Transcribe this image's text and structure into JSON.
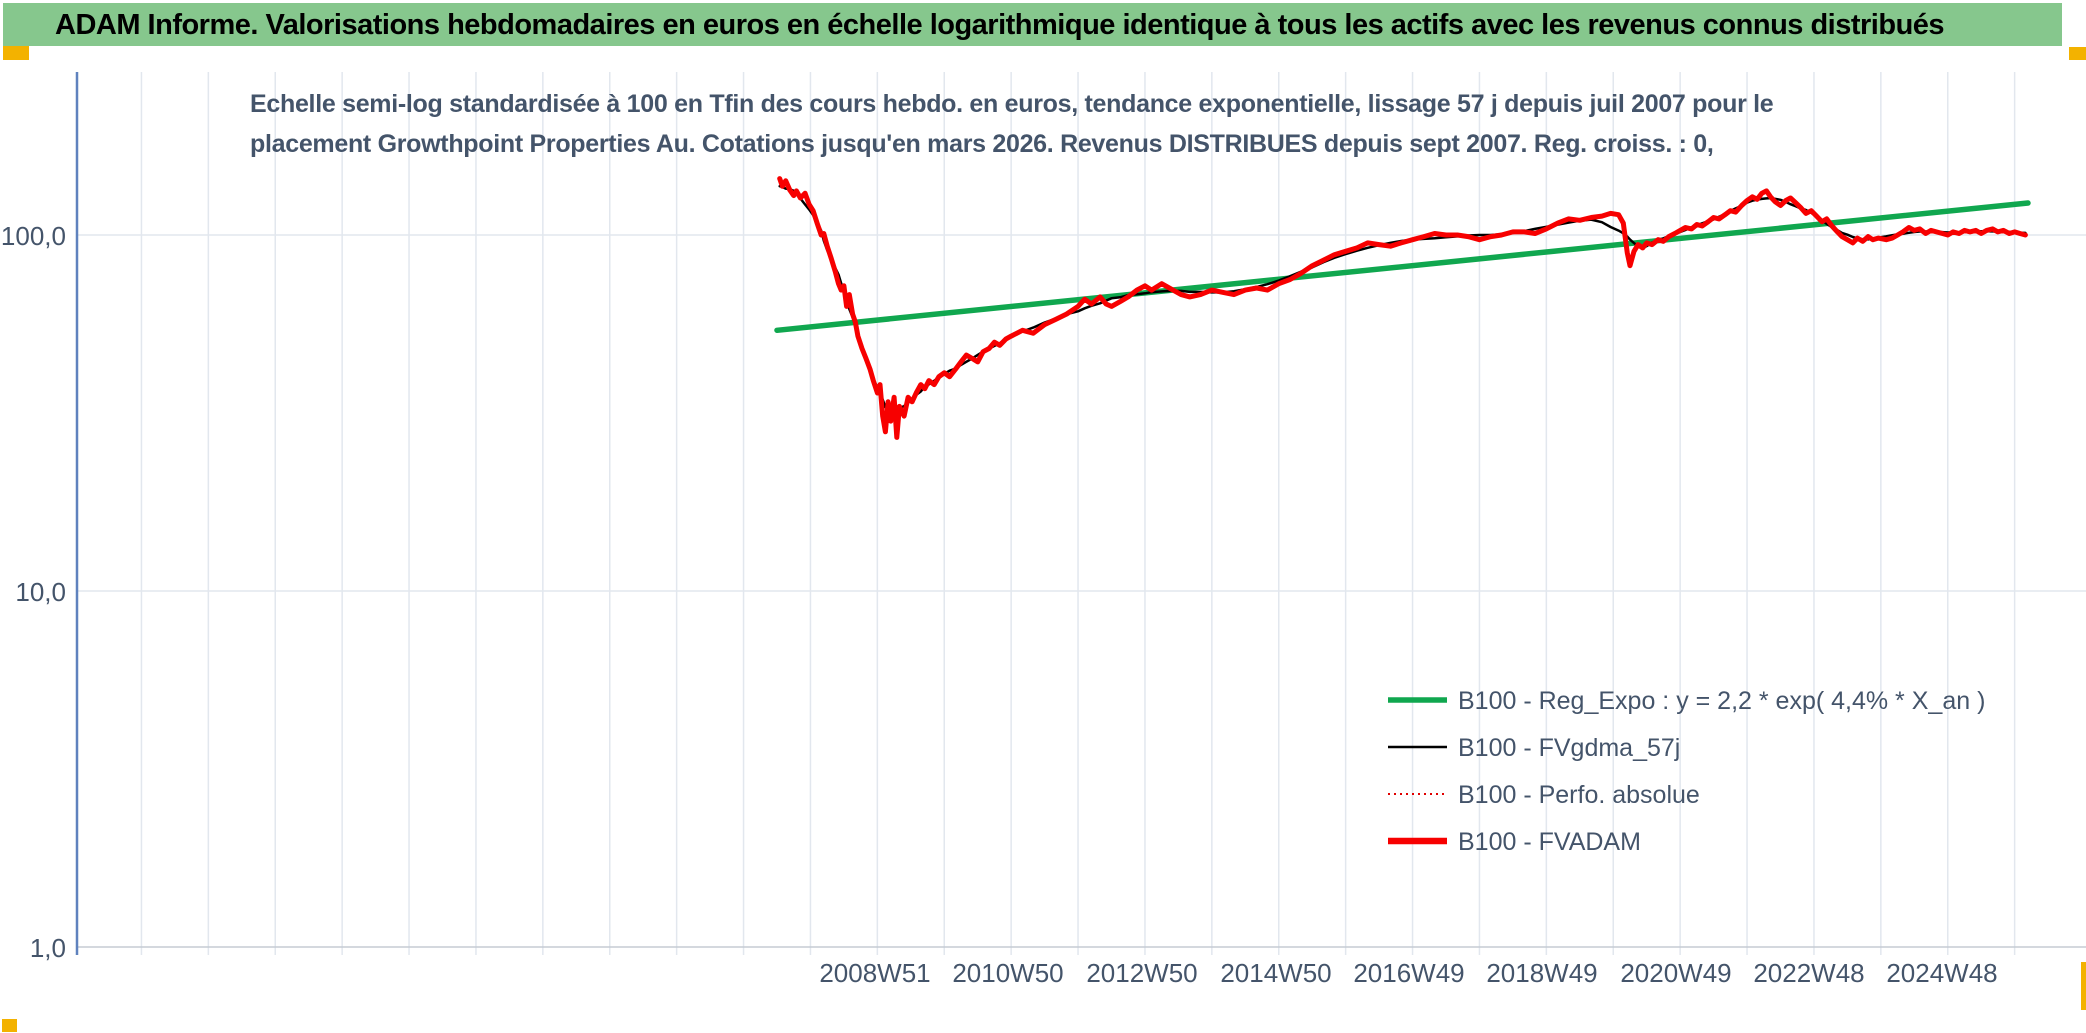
{
  "window": {
    "title_bar_text": "ADAM Informe. Valorisations hebdomadaires en euros en échelle logarithmique identique à tous les actifs avec les revenus connus distribués",
    "accent_green": "#86C78D",
    "accent_amber": "#F3B200"
  },
  "chart_data": {
    "type": "line",
    "title_line1": "Echelle semi-log standardisée à 100 en Tfin des cours hebdo. en euros, tendance exponentielle, lissage 57 j depuis juil 2007 pour le",
    "title_line2": "placement Growthpoint Properties Au. Cotations jusqu'en mars 2026. Revenus DISTRIBUES depuis sept 2007. Reg. croiss. : 0,",
    "y_axis": {
      "scale": "log",
      "ticks": [
        {
          "label": "100,0",
          "value": 100
        },
        {
          "label": "10,0",
          "value": 10
        },
        {
          "label": "1,0",
          "value": 1
        }
      ],
      "gridlines_at": [
        100,
        10,
        1
      ]
    },
    "x_axis": {
      "range_years": [
        1997.0,
        2026.95
      ],
      "gridline_interval_years": 1,
      "labels": [
        {
          "label": "2008W51",
          "t": 2008.97
        },
        {
          "label": "2010W50",
          "t": 2010.95
        },
        {
          "label": "2012W50",
          "t": 2012.96
        },
        {
          "label": "2014W50",
          "t": 2014.96
        },
        {
          "label": "2016W49",
          "t": 2016.94
        },
        {
          "label": "2018W49",
          "t": 2018.94
        },
        {
          "label": "2020W49",
          "t": 2020.94
        },
        {
          "label": "2022W48",
          "t": 2022.92
        },
        {
          "label": "2024W48",
          "t": 2024.92
        }
      ]
    },
    "legend": [
      {
        "label": "B100 - Reg_Expo : y = 2,2 * exp( 4,4% *  X_an )",
        "color": "#10A74F",
        "style": "solid-thick"
      },
      {
        "label": "B100 - FVgdma_57j",
        "color": "#000000",
        "style": "solid-thin"
      },
      {
        "label": "B100 - Perfo. absolue",
        "color": "#E00000",
        "style": "dotted"
      },
      {
        "label": "B100 - FVADAM",
        "color": "#F70000",
        "style": "solid-thicker"
      }
    ],
    "series": [
      {
        "key": "reg-expo",
        "name": "B100 - Reg_Expo",
        "color": "#10A74F",
        "width": 5.5,
        "points": [
          [
            2007.5,
            54
          ],
          [
            2026.2,
            123
          ]
        ]
      },
      {
        "key": "perfo-absolue",
        "name": "B100 - Perfo. absolue",
        "color": "#E00000",
        "width": 2,
        "dotted": true,
        "same_as": "fvadam"
      },
      {
        "key": "fvgdma-57j",
        "name": "B100 - FVgdma_57j",
        "color": "#000000",
        "width": 2.5,
        "smooth_of": "fvadam",
        "smooth_window": 9
      },
      {
        "key": "fvadam",
        "name": "B100 - FVADAM",
        "color": "#F70000",
        "width": 5,
        "points": [
          [
            2007.54,
            144
          ],
          [
            2007.58,
            137
          ],
          [
            2007.63,
            142
          ],
          [
            2007.69,
            134
          ],
          [
            2007.75,
            129
          ],
          [
            2007.79,
            133
          ],
          [
            2007.85,
            127
          ],
          [
            2007.92,
            131
          ],
          [
            2007.98,
            122
          ],
          [
            2008.04,
            117
          ],
          [
            2008.1,
            108
          ],
          [
            2008.16,
            100
          ],
          [
            2008.2,
            101
          ],
          [
            2008.25,
            93
          ],
          [
            2008.31,
            86
          ],
          [
            2008.37,
            79
          ],
          [
            2008.42,
            73
          ],
          [
            2008.46,
            70
          ],
          [
            2008.5,
            72
          ],
          [
            2008.54,
            63
          ],
          [
            2008.58,
            68
          ],
          [
            2008.63,
            60
          ],
          [
            2008.67,
            57
          ],
          [
            2008.71,
            52
          ],
          [
            2008.77,
            48
          ],
          [
            2008.83,
            45
          ],
          [
            2008.89,
            42
          ],
          [
            2008.94,
            39
          ],
          [
            2009.0,
            36
          ],
          [
            2009.04,
            38
          ],
          [
            2009.08,
            31
          ],
          [
            2009.12,
            28
          ],
          [
            2009.16,
            34
          ],
          [
            2009.2,
            30
          ],
          [
            2009.25,
            35
          ],
          [
            2009.29,
            27
          ],
          [
            2009.33,
            33
          ],
          [
            2009.4,
            31
          ],
          [
            2009.46,
            35
          ],
          [
            2009.52,
            34
          ],
          [
            2009.58,
            36
          ],
          [
            2009.65,
            38
          ],
          [
            2009.71,
            37
          ],
          [
            2009.77,
            39
          ],
          [
            2009.85,
            38
          ],
          [
            2009.92,
            40
          ],
          [
            2010.0,
            41
          ],
          [
            2010.08,
            40
          ],
          [
            2010.17,
            42
          ],
          [
            2010.25,
            44
          ],
          [
            2010.33,
            46
          ],
          [
            2010.42,
            45
          ],
          [
            2010.5,
            44
          ],
          [
            2010.58,
            47
          ],
          [
            2010.67,
            48
          ],
          [
            2010.75,
            50
          ],
          [
            2010.83,
            49
          ],
          [
            2010.92,
            51
          ],
          [
            2011.0,
            52
          ],
          [
            2011.17,
            54
          ],
          [
            2011.33,
            53
          ],
          [
            2011.5,
            56
          ],
          [
            2011.67,
            58
          ],
          [
            2011.83,
            60
          ],
          [
            2012.0,
            63
          ],
          [
            2012.1,
            66
          ],
          [
            2012.2,
            64
          ],
          [
            2012.33,
            67
          ],
          [
            2012.42,
            64
          ],
          [
            2012.5,
            63
          ],
          [
            2012.63,
            65
          ],
          [
            2012.75,
            67
          ],
          [
            2012.88,
            70
          ],
          [
            2013.0,
            72
          ],
          [
            2013.1,
            70
          ],
          [
            2013.25,
            73
          ],
          [
            2013.42,
            70
          ],
          [
            2013.54,
            68
          ],
          [
            2013.67,
            67
          ],
          [
            2013.83,
            68
          ],
          [
            2014.0,
            70
          ],
          [
            2014.17,
            69
          ],
          [
            2014.33,
            68
          ],
          [
            2014.5,
            70
          ],
          [
            2014.67,
            71
          ],
          [
            2014.83,
            70
          ],
          [
            2015.0,
            73
          ],
          [
            2015.17,
            75
          ],
          [
            2015.33,
            78
          ],
          [
            2015.5,
            82
          ],
          [
            2015.67,
            85
          ],
          [
            2015.83,
            88
          ],
          [
            2016.0,
            90
          ],
          [
            2016.17,
            92
          ],
          [
            2016.33,
            95
          ],
          [
            2016.5,
            94
          ],
          [
            2016.67,
            93
          ],
          [
            2016.83,
            95
          ],
          [
            2017.0,
            97
          ],
          [
            2017.17,
            99
          ],
          [
            2017.33,
            101
          ],
          [
            2017.5,
            100
          ],
          [
            2017.67,
            100
          ],
          [
            2017.83,
            99
          ],
          [
            2018.0,
            97
          ],
          [
            2018.17,
            99
          ],
          [
            2018.33,
            100
          ],
          [
            2018.5,
            102
          ],
          [
            2018.67,
            102
          ],
          [
            2018.83,
            101
          ],
          [
            2019.0,
            104
          ],
          [
            2019.17,
            108
          ],
          [
            2019.33,
            111
          ],
          [
            2019.5,
            110
          ],
          [
            2019.67,
            112
          ],
          [
            2019.83,
            113
          ],
          [
            2019.96,
            115
          ],
          [
            2020.08,
            114
          ],
          [
            2020.15,
            108
          ],
          [
            2020.21,
            89
          ],
          [
            2020.25,
            82
          ],
          [
            2020.31,
            90
          ],
          [
            2020.37,
            94
          ],
          [
            2020.44,
            92
          ],
          [
            2020.5,
            95
          ],
          [
            2020.58,
            94
          ],
          [
            2020.67,
            97
          ],
          [
            2020.75,
            96
          ],
          [
            2020.83,
            99
          ],
          [
            2020.92,
            101
          ],
          [
            2021.0,
            103
          ],
          [
            2021.08,
            105
          ],
          [
            2021.17,
            104
          ],
          [
            2021.25,
            107
          ],
          [
            2021.33,
            106
          ],
          [
            2021.42,
            109
          ],
          [
            2021.5,
            112
          ],
          [
            2021.58,
            111
          ],
          [
            2021.67,
            114
          ],
          [
            2021.75,
            117
          ],
          [
            2021.83,
            116
          ],
          [
            2021.92,
            121
          ],
          [
            2022.0,
            125
          ],
          [
            2022.08,
            128
          ],
          [
            2022.15,
            126
          ],
          [
            2022.22,
            131
          ],
          [
            2022.29,
            133
          ],
          [
            2022.35,
            128
          ],
          [
            2022.42,
            124
          ],
          [
            2022.5,
            121
          ],
          [
            2022.58,
            125
          ],
          [
            2022.65,
            127
          ],
          [
            2022.73,
            123
          ],
          [
            2022.81,
            119
          ],
          [
            2022.88,
            115
          ],
          [
            2022.96,
            117
          ],
          [
            2023.04,
            113
          ],
          [
            2023.12,
            109
          ],
          [
            2023.19,
            111
          ],
          [
            2023.27,
            106
          ],
          [
            2023.35,
            102
          ],
          [
            2023.42,
            99
          ],
          [
            2023.5,
            97
          ],
          [
            2023.58,
            95
          ],
          [
            2023.65,
            98
          ],
          [
            2023.73,
            96
          ],
          [
            2023.81,
            99
          ],
          [
            2023.88,
            97
          ],
          [
            2023.96,
            98
          ],
          [
            2024.08,
            97
          ],
          [
            2024.17,
            98
          ],
          [
            2024.25,
            100
          ],
          [
            2024.33,
            102
          ],
          [
            2024.42,
            105
          ],
          [
            2024.5,
            103
          ],
          [
            2024.58,
            104
          ],
          [
            2024.67,
            101
          ],
          [
            2024.75,
            103
          ],
          [
            2024.83,
            102
          ],
          [
            2024.92,
            101
          ],
          [
            2025.0,
            100
          ],
          [
            2025.08,
            102
          ],
          [
            2025.17,
            101
          ],
          [
            2025.25,
            103
          ],
          [
            2025.33,
            102
          ],
          [
            2025.42,
            103
          ],
          [
            2025.5,
            101
          ],
          [
            2025.58,
            103
          ],
          [
            2025.67,
            104
          ],
          [
            2025.75,
            102
          ],
          [
            2025.83,
            103
          ],
          [
            2025.92,
            101
          ],
          [
            2026.0,
            102
          ],
          [
            2026.08,
            101
          ],
          [
            2026.16,
            100
          ]
        ]
      }
    ]
  }
}
